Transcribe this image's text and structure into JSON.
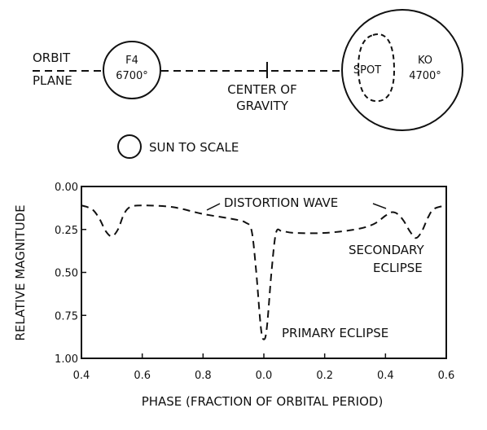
{
  "diagram": {
    "orbit_label_line1": "ORBIT",
    "orbit_label_line2": "PLANE",
    "primary_star": {
      "type": "F4",
      "temperature": "6700°"
    },
    "secondary_star": {
      "type": "KO",
      "temperature": "4700°",
      "spot_label": "SPOT"
    },
    "center_label_line1": "CENTER OF",
    "center_label_line2": "GRAVITY",
    "sun_label": "SUN TO SCALE"
  },
  "chart_data": {
    "type": "line",
    "ylabel": "RELATIVE MAGNITUDE",
    "xlabel": "PHASE (FRACTION OF ORBITAL PERIOD)",
    "x_tick_labels": [
      "0.4",
      "0.6",
      "0.8",
      "0.0",
      "0.2",
      "0.4",
      "0.6"
    ],
    "y_tick_labels": [
      "0.00",
      "0.25",
      "0.50",
      "0.75",
      "1.00"
    ],
    "y_ticks": [
      0,
      0.25,
      0.5,
      0.75,
      1.0
    ],
    "ylim": [
      0,
      1
    ],
    "x_range": [
      0.4,
      1.6
    ],
    "y_inverted": true,
    "line_style": "dashed",
    "annotations": [
      "DISTORTION WAVE",
      "SECONDARY",
      "ECLIPSE",
      "PRIMARY ECLIPSE"
    ],
    "series": [
      {
        "x": [
          0.4,
          0.42,
          0.44,
          0.46,
          0.48,
          0.5,
          0.52,
          0.54,
          0.56,
          0.6,
          0.7,
          0.8,
          0.9,
          0.94,
          0.96,
          0.975,
          0.99,
          1.0,
          1.01,
          1.025,
          1.04,
          1.06,
          1.1,
          1.2,
          1.3,
          1.36,
          1.4,
          1.42,
          1.44,
          1.46,
          1.48,
          1.5,
          1.52,
          1.54,
          1.56,
          1.6
        ],
        "y": [
          0.11,
          0.12,
          0.14,
          0.19,
          0.26,
          0.29,
          0.25,
          0.16,
          0.12,
          0.11,
          0.12,
          0.16,
          0.19,
          0.21,
          0.26,
          0.5,
          0.82,
          0.89,
          0.82,
          0.5,
          0.27,
          0.26,
          0.27,
          0.27,
          0.25,
          0.22,
          0.17,
          0.15,
          0.16,
          0.2,
          0.26,
          0.3,
          0.26,
          0.18,
          0.13,
          0.11
        ]
      }
    ]
  }
}
